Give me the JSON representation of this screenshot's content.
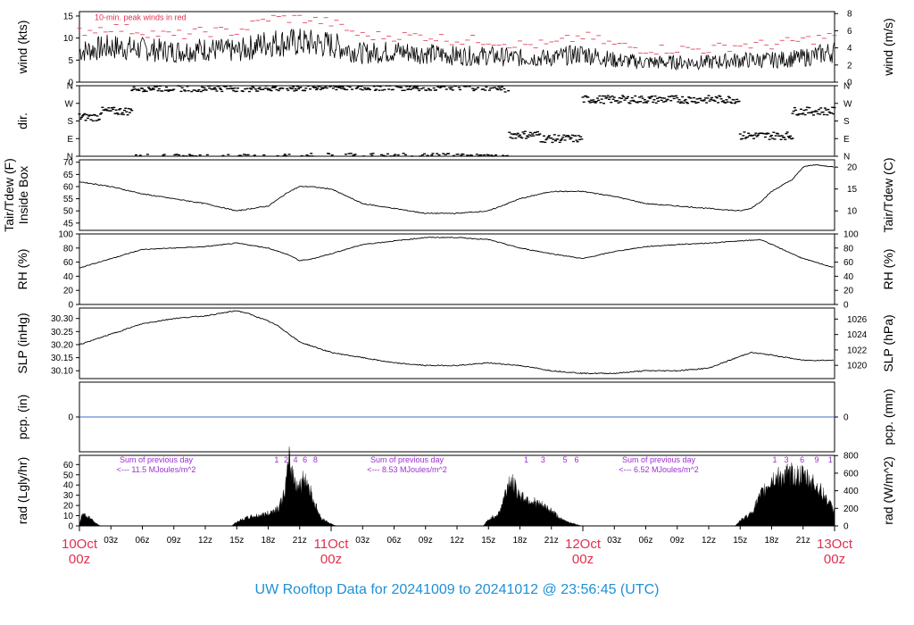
{
  "title": "UW Rooftop Data for 20241009  to  20241012 @ 23:56:45  (UTC)",
  "colors": {
    "title": "#1e90d6",
    "date": "#e0304e",
    "gust": "#e0304e",
    "note": "#9b30d0",
    "pcp_line": "#3a6fc4"
  },
  "time_axis": {
    "hours_total": 72,
    "minor_ticks": [
      "03z",
      "06z",
      "09z",
      "12z",
      "15z",
      "18z",
      "21z"
    ],
    "dates": [
      {
        "day": "10Oct",
        "hour": "00z"
      },
      {
        "day": "11Oct",
        "hour": "00z"
      },
      {
        "day": "12Oct",
        "hour": "00z"
      },
      {
        "day": "13Oct",
        "hour": "00z"
      }
    ]
  },
  "chart_data": [
    {
      "id": "wind",
      "type": "line",
      "ylabel": "wind (kts)",
      "ylabel_right": "wind (m/s)",
      "ylim": [
        0,
        16
      ],
      "yticks": [
        0,
        5,
        10,
        15
      ],
      "right_ylim": [
        0,
        8.23
      ],
      "right_yticks": [
        0,
        2,
        4,
        6,
        8
      ],
      "annotation": "10-min. peak winds in red",
      "series": [
        {
          "x": [
            0,
            3,
            6,
            9,
            12,
            15,
            18,
            21,
            24,
            27,
            30,
            33,
            36,
            39,
            42,
            45,
            48,
            51,
            54,
            57,
            60,
            63,
            66,
            69,
            72
          ],
          "values": [
            7,
            8,
            7.5,
            7,
            7.5,
            7,
            9,
            9,
            8.5,
            6.5,
            7,
            6.5,
            6,
            6,
            5.5,
            5.5,
            6.5,
            5,
            4.5,
            4.5,
            4.5,
            5,
            5,
            5.5,
            7
          ]
        },
        {
          "x": [
            0,
            3,
            6,
            9,
            12,
            15,
            18,
            21,
            24,
            27,
            30,
            33,
            36,
            39,
            42,
            45,
            48,
            51,
            54,
            57,
            60,
            63,
            66,
            69,
            72
          ],
          "values": [
            11,
            12,
            11,
            10,
            11,
            11,
            14,
            14,
            13,
            10,
            10,
            10,
            9,
            9,
            8,
            8,
            10,
            8,
            7,
            7,
            7,
            8,
            8,
            9,
            10
          ]
        }
      ]
    },
    {
      "id": "dir",
      "type": "scatter",
      "ylabel": "dir.",
      "ylim": [
        0,
        360
      ],
      "ytick_labels": [
        "N",
        "E",
        "S",
        "W",
        "N"
      ],
      "yticks": [
        0,
        90,
        180,
        270,
        360
      ],
      "segments": [
        {
          "x0": 0,
          "x1": 2,
          "dir": 200
        },
        {
          "x0": 2,
          "x1": 5,
          "dir": 230
        },
        {
          "x0": 5,
          "x1": 22,
          "dir": 350
        },
        {
          "x0": 22,
          "x1": 40,
          "dir": 355
        },
        {
          "x0": 40,
          "x1": 41,
          "dir": 345
        },
        {
          "x0": 41,
          "x1": 44,
          "dir": 110
        },
        {
          "x0": 44,
          "x1": 48,
          "dir": 90
        },
        {
          "x0": 48,
          "x1": 63,
          "dir": 290
        },
        {
          "x0": 63,
          "x1": 68,
          "dir": 105
        },
        {
          "x0": 68,
          "x1": 72,
          "dir": 230
        }
      ]
    },
    {
      "id": "temp",
      "type": "line",
      "ylabel": "Tair/Tdew (F)",
      "ylabel2": "Inside Box",
      "ylabel_right": "Tair/Tdew (C)",
      "ylim": [
        42,
        71
      ],
      "yticks": [
        45,
        50,
        55,
        60,
        65,
        70
      ],
      "right_yticks": [
        10,
        15,
        20
      ],
      "series": [
        {
          "x": [
            0,
            3,
            6,
            9,
            12,
            15,
            18,
            19,
            20,
            21,
            22,
            24,
            27,
            30,
            33,
            36,
            39,
            42,
            45,
            48,
            51,
            54,
            57,
            60,
            63,
            64,
            65,
            66,
            68,
            69,
            70,
            72
          ],
          "values": [
            62,
            60,
            57,
            55,
            53,
            50,
            52,
            55,
            58,
            60,
            60,
            59,
            53,
            51,
            49,
            49,
            50,
            55,
            58,
            58,
            56,
            53,
            52,
            51,
            50,
            51,
            54,
            58,
            63,
            68,
            69,
            68
          ]
        }
      ]
    },
    {
      "id": "rh",
      "type": "line",
      "ylabel": "RH (%)",
      "ylabel_right": "RH (%)",
      "ylim": [
        0,
        100
      ],
      "yticks": [
        0,
        20,
        40,
        60,
        80,
        100
      ],
      "series": [
        {
          "x": [
            0,
            3,
            6,
            9,
            12,
            15,
            18,
            20,
            21,
            22,
            24,
            27,
            30,
            33,
            36,
            39,
            42,
            45,
            48,
            51,
            54,
            57,
            60,
            63,
            65,
            66,
            69,
            72
          ],
          "values": [
            52,
            65,
            78,
            80,
            82,
            87,
            80,
            70,
            62,
            64,
            72,
            85,
            90,
            95,
            95,
            92,
            80,
            72,
            65,
            75,
            82,
            85,
            87,
            90,
            92,
            85,
            65,
            52
          ]
        }
      ]
    },
    {
      "id": "slp",
      "type": "line",
      "ylabel": "SLP (inHg)",
      "ylabel_right": "SLP (hPa)",
      "ylim": [
        30.07,
        30.34
      ],
      "yticks": [
        30.1,
        30.15,
        30.2,
        30.25,
        30.3
      ],
      "right_ticks_hpa": [
        1020,
        1022,
        1024,
        1026
      ],
      "series": [
        {
          "x": [
            0,
            3,
            6,
            9,
            12,
            15,
            16,
            18,
            19,
            21,
            24,
            27,
            30,
            33,
            36,
            39,
            42,
            45,
            48,
            51,
            54,
            57,
            60,
            62,
            64,
            66,
            69,
            72
          ],
          "values": [
            30.2,
            30.24,
            30.28,
            30.3,
            30.31,
            30.33,
            30.32,
            30.29,
            30.27,
            30.21,
            30.17,
            30.15,
            30.13,
            30.12,
            30.12,
            30.13,
            30.12,
            30.1,
            30.09,
            30.09,
            30.1,
            30.1,
            30.11,
            30.14,
            30.17,
            30.16,
            30.14,
            30.14
          ]
        }
      ]
    },
    {
      "id": "pcp",
      "type": "line",
      "ylabel": "pcp. (in)",
      "ylabel_right": "pcp. (mm)",
      "ylim": [
        -0.1,
        0.1
      ],
      "yticks": [
        0
      ],
      "right_yticks": [
        0
      ],
      "series": [
        {
          "x": [
            0,
            72
          ],
          "values": [
            0,
            0
          ]
        }
      ]
    },
    {
      "id": "rad",
      "type": "area",
      "ylabel": "rad (Lgly/hr)",
      "ylabel_right": "rad (W/m^2)",
      "ylim": [
        0,
        69
      ],
      "yticks": [
        0,
        10,
        20,
        30,
        40,
        50,
        60
      ],
      "right_yticks": [
        0,
        200,
        400,
        600,
        800
      ],
      "notes": [
        {
          "label": "Sum of previous day",
          "value": "<--- 11.5 MJoules/m^2"
        },
        {
          "label": "Sum of previous day",
          "value": "<--- 8.53 MJoules/m^2"
        },
        {
          "label": "Sum of previous day",
          "value": "<--- 6.52 MJoules/m^2"
        }
      ],
      "hour_marks": [
        [
          "1",
          "2",
          "4",
          "6",
          "8"
        ],
        [
          "1",
          "3",
          "5",
          "6"
        ],
        [
          "1",
          "3",
          "6",
          "9",
          "1"
        ]
      ],
      "series": [
        {
          "x": [
            0,
            0.2,
            1,
            1.5,
            2,
            14.5,
            15,
            16,
            17,
            18,
            19,
            19.5,
            20,
            20.5,
            21,
            21.5,
            22,
            22.5,
            23,
            24,
            24.5,
            38.5,
            39,
            40,
            40.5,
            41,
            42,
            43,
            44,
            45,
            46,
            47.5,
            48,
            49,
            62.5,
            63,
            64,
            65,
            66,
            67,
            68,
            69,
            70,
            71,
            72
          ],
          "values": [
            0,
            12,
            8,
            3,
            0,
            0,
            4,
            8,
            10,
            12,
            18,
            30,
            62,
            45,
            38,
            48,
            35,
            20,
            8,
            2,
            0,
            0,
            6,
            12,
            28,
            45,
            30,
            25,
            20,
            15,
            6,
            1,
            0,
            0,
            0,
            5,
            12,
            30,
            45,
            48,
            50,
            48,
            42,
            30,
            14
          ]
        }
      ]
    }
  ]
}
